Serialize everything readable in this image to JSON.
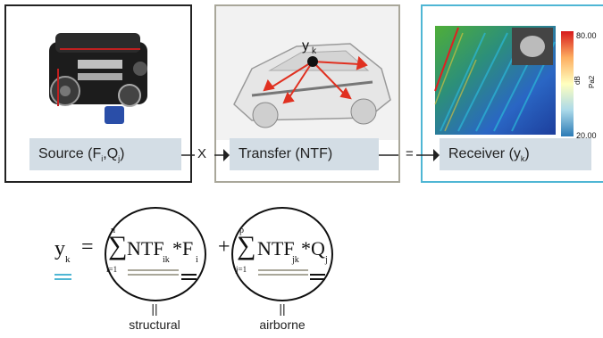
{
  "boxes": {
    "source_label": "Source (F",
    "source_i": "i",
    "source_mid": ",Q",
    "source_j": "j",
    "source_end": ")",
    "transfer_label": "Transfer (NTF)",
    "receiver_label": "Receiver (y",
    "receiver_k": "k",
    "receiver_end": ")"
  },
  "operators": {
    "times": "X",
    "equals": "="
  },
  "car_label": {
    "y": "y",
    "k": "k"
  },
  "colorbar": {
    "max": "80.00",
    "min": "20.00",
    "unit": "dB",
    "ref": "Pa2"
  },
  "formula": {
    "lhs": "y",
    "lhs_sub": "k",
    "eq": "=",
    "plus": "+",
    "sum1": {
      "top": "n",
      "bottom": "i=1",
      "body": "NTF",
      "sub": "ik",
      "op": "*F",
      "var_sub": "i"
    },
    "sum2": {
      "top": "p",
      "bottom": "j=1",
      "body": "NTF",
      "sub": "jk",
      "op": "*Q",
      "var_sub": "j"
    }
  },
  "annotations": {
    "structural": "structural",
    "airborne": "airborne",
    "mark": "||"
  },
  "colors": {
    "underline_blue": "#4fb6d4",
    "underline_gray": "#a9a79a",
    "label_bg": "#d3dde5"
  },
  "icons": [
    "engine-image",
    "car-image",
    "spectrogram-image"
  ]
}
